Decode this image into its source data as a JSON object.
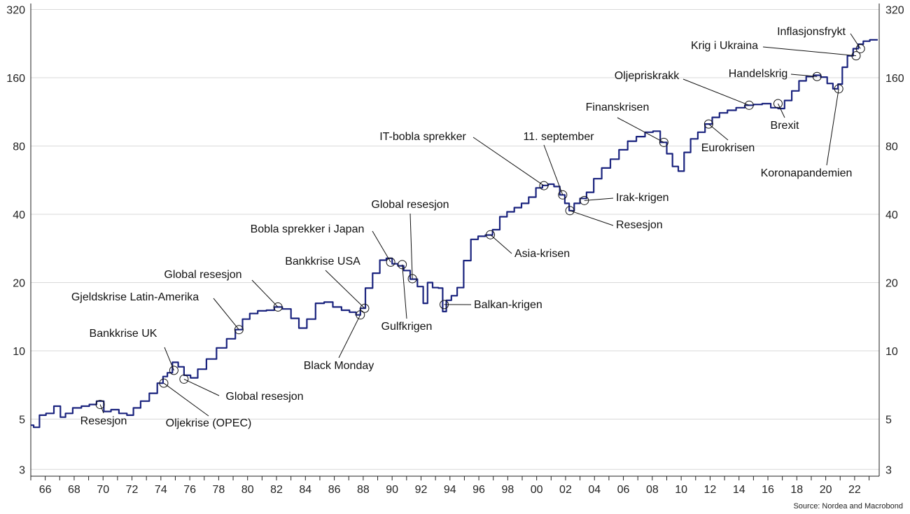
{
  "chart_data": {
    "type": "line",
    "title": "",
    "xlabel": "",
    "ylabel": "",
    "yscale": "log2",
    "ylim": [
      2.8,
      340
    ],
    "xlim": [
      1965,
      2023.7
    ],
    "y_ticks": [
      3,
      5,
      10,
      20,
      40,
      80,
      160,
      320
    ],
    "x_ticks": [
      {
        "year": 1966,
        "label": "66"
      },
      {
        "year": 1968,
        "label": "68"
      },
      {
        "year": 1970,
        "label": "70"
      },
      {
        "year": 1972,
        "label": "72"
      },
      {
        "year": 1974,
        "label": "74"
      },
      {
        "year": 1976,
        "label": "76"
      },
      {
        "year": 1978,
        "label": "78"
      },
      {
        "year": 1980,
        "label": "80"
      },
      {
        "year": 1982,
        "label": "82"
      },
      {
        "year": 1984,
        "label": "84"
      },
      {
        "year": 1986,
        "label": "86"
      },
      {
        "year": 1988,
        "label": "88"
      },
      {
        "year": 1990,
        "label": "90"
      },
      {
        "year": 1992,
        "label": "92"
      },
      {
        "year": 1994,
        "label": "94"
      },
      {
        "year": 1996,
        "label": "96"
      },
      {
        "year": 1998,
        "label": "98"
      },
      {
        "year": 2000,
        "label": "00"
      },
      {
        "year": 2002,
        "label": "02"
      },
      {
        "year": 2004,
        "label": "04"
      },
      {
        "year": 2006,
        "label": "06"
      },
      {
        "year": 2008,
        "label": "08"
      },
      {
        "year": 2010,
        "label": "10"
      },
      {
        "year": 2012,
        "label": "12"
      },
      {
        "year": 2014,
        "label": "14"
      },
      {
        "year": 2016,
        "label": "16"
      },
      {
        "year": 2018,
        "label": "18"
      },
      {
        "year": 2020,
        "label": "20"
      },
      {
        "year": 2022,
        "label": "22"
      }
    ],
    "grid": true,
    "series_color": "#1a237e",
    "series": [
      {
        "x": [
          1965.0,
          1965.4,
          1965.8,
          1966.3,
          1966.9,
          1967.2,
          1967.6,
          1968.2,
          1968.8,
          1969.3,
          1969.8,
          1970.3,
          1970.8,
          1971.4,
          1971.9,
          1972.3,
          1972.9,
          1973.5,
          1974.0,
          1974.3,
          1974.6,
          1975.0,
          1975.4,
          1975.8,
          1976.3,
          1976.8,
          1977.5,
          1978.2,
          1978.9,
          1979.4,
          1979.9,
          1980.4,
          1981.0,
          1981.6,
          1982.1,
          1982.7,
          1983.3,
          1983.8,
          1984.4,
          1985.0,
          1985.6,
          1986.2,
          1986.8,
          1987.3,
          1987.7,
          1987.9,
          1988.4,
          1988.9,
          1989.4,
          1989.8,
          1990.2,
          1990.6,
          1991.0,
          1991.5,
          1992.0,
          1992.3,
          1992.6,
          1993.0,
          1993.4,
          1993.6,
          1993.9,
          1994.3,
          1994.7,
          1995.2,
          1995.7,
          1996.2,
          1996.7,
          1997.2,
          1997.7,
          1998.2,
          1998.7,
          1999.2,
          1999.7,
          2000.2,
          2000.6,
          2001.0,
          2001.4,
          2001.8,
          2002.1,
          2002.4,
          2002.8,
          2003.2,
          2003.7,
          2004.2,
          2004.8,
          2005.4,
          2006.0,
          2006.6,
          2007.2,
          2007.8,
          2008.3,
          2008.8,
          2009.2,
          2009.6,
          2010.0,
          2010.4,
          2010.9,
          2011.4,
          2011.9,
          2012.4,
          2012.9,
          2013.5,
          2014.1,
          2014.7,
          2015.3,
          2015.9,
          2016.5,
          2016.9,
          2017.4,
          2017.9,
          2018.4,
          2018.9,
          2019.4,
          2019.9,
          2020.3,
          2020.7,
          2021.0,
          2021.3,
          2021.7,
          2022.1,
          2022.4,
          2022.8,
          2023.3,
          2023.6
        ],
        "y": [
          4.7,
          4.6,
          5.2,
          5.3,
          5.7,
          5.1,
          5.3,
          5.6,
          5.7,
          5.8,
          6.0,
          5.4,
          5.5,
          5.3,
          5.2,
          5.6,
          6.0,
          6.5,
          7.2,
          7.7,
          8.0,
          8.9,
          8.5,
          7.8,
          7.6,
          8.3,
          9.2,
          10.3,
          11.3,
          12.4,
          13.8,
          14.6,
          15.0,
          15.1,
          15.6,
          15.3,
          13.9,
          12.6,
          13.8,
          16.2,
          16.4,
          15.6,
          15.1,
          14.8,
          14.4,
          15.4,
          18.9,
          22.0,
          25.1,
          25.6,
          24.2,
          23.7,
          22.6,
          20.7,
          19.2,
          16.2,
          20.0,
          19.0,
          18.9,
          14.9,
          16.7,
          17.5,
          19.0,
          25.0,
          31.0,
          32.0,
          32.4,
          34.2,
          39.0,
          41.0,
          42.8,
          44.7,
          47.6,
          52.3,
          53.6,
          54.3,
          53.0,
          48.7,
          44.7,
          41.5,
          44.7,
          47.0,
          50.0,
          57.4,
          64.0,
          70.0,
          77.0,
          84.0,
          88.0,
          92.0,
          93.0,
          83.0,
          74.0,
          65.0,
          62.0,
          75.0,
          86.0,
          92.0,
          100.0,
          107.0,
          112.0,
          115.0,
          118.0,
          121.0,
          122.0,
          123.0,
          118.0,
          117.0,
          127.0,
          140.0,
          155.0,
          162.0,
          164.0,
          161.0,
          151.0,
          143.0,
          150.0,
          178.0,
          200.0,
          215.0,
          225.0,
          232.0,
          235.0,
          235.0
        ]
      }
    ],
    "annotations": [
      {
        "label": "Resesjon",
        "x": 1969.8,
        "y": 5.8
      },
      {
        "label": "Oljekrise (OPEC)",
        "x": 1974.2,
        "y": 7.2
      },
      {
        "label": "Bankkrise UK",
        "x": 1974.9,
        "y": 8.2
      },
      {
        "label": "Global resesjon",
        "x": 1975.6,
        "y": 7.5
      },
      {
        "label": "Gjeldskrise Latin-Amerika",
        "x": 1979.4,
        "y": 12.4
      },
      {
        "label": "Global resesjon",
        "x": 1982.1,
        "y": 15.6
      },
      {
        "label": "Black Monday",
        "x": 1987.8,
        "y": 14.4
      },
      {
        "label": "Bankkrise USA",
        "x": 1988.1,
        "y": 15.4
      },
      {
        "label": "Bobla sprekker i Japan",
        "x": 1989.9,
        "y": 24.6
      },
      {
        "label": "Gulfkrigen",
        "x": 1990.7,
        "y": 24.0
      },
      {
        "label": "Global resesjon",
        "x": 1991.4,
        "y": 20.8
      },
      {
        "label": "Balkan-krigen",
        "x": 1993.6,
        "y": 16.0
      },
      {
        "label": "Asia-krisen",
        "x": 1996.8,
        "y": 32.5
      },
      {
        "label": "IT-bobla sprekker",
        "x": 2000.5,
        "y": 53.5
      },
      {
        "label": "11. september",
        "x": 2001.8,
        "y": 48.7
      },
      {
        "label": "Resesjon",
        "x": 2002.3,
        "y": 41.5
      },
      {
        "label": "Irak-krigen",
        "x": 2003.3,
        "y": 46.0
      },
      {
        "label": "Finanskrisen",
        "x": 2008.8,
        "y": 83.0
      },
      {
        "label": "Eurokrisen",
        "x": 2011.9,
        "y": 100.0
      },
      {
        "label": "Oljepriskrakk",
        "x": 2014.7,
        "y": 121.0
      },
      {
        "label": "Brexit",
        "x": 2016.7,
        "y": 123.0
      },
      {
        "label": "Handelskrig",
        "x": 2019.4,
        "y": 162.0
      },
      {
        "label": "Koronapandemien",
        "x": 2020.9,
        "y": 143.0
      },
      {
        "label": "Krig i Ukraina",
        "x": 2022.1,
        "y": 200.0
      },
      {
        "label": "Inflasjonsfrykt",
        "x": 2022.4,
        "y": 215.0
      }
    ]
  },
  "source": "Source: Nordea and Macrobond"
}
